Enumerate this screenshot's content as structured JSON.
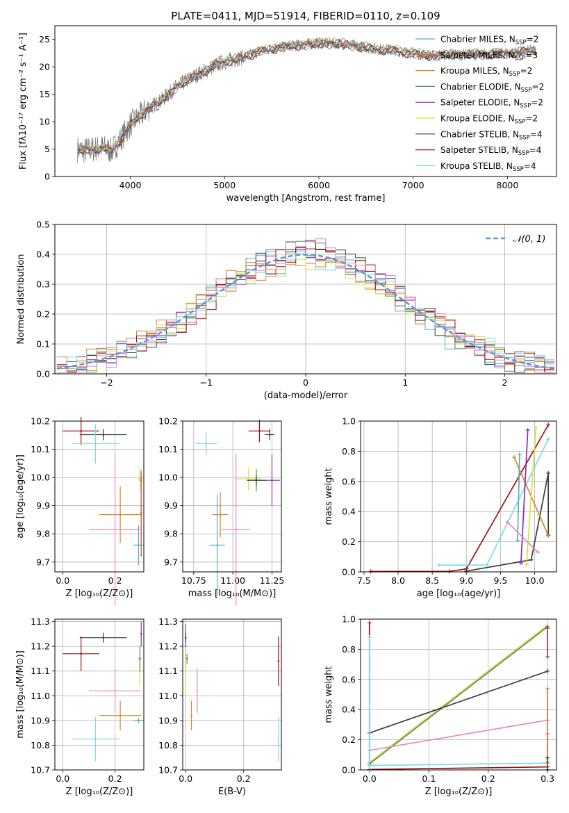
{
  "title": "PLATE=0411, MJD=51914, FIBERID=0110, z=0.109",
  "colors": {
    "chab_miles": "#5aa8c8",
    "salp_miles": "#ef6a3b",
    "krou_miles": "#d08a2a",
    "chab_elodie": "#5a8c5a",
    "salp_elodie": "#8a2ab8",
    "krou_elodie": "#d8e040",
    "chab_stelib": "#3c3c3c",
    "salp_stelib": "#a01010",
    "krou_stelib": "#7adbe8",
    "data": "#707070",
    "gauss": "#5a96d8",
    "grid": "#b0b0b0"
  },
  "chart_data": [
    {
      "type": "line",
      "id": "spectrum",
      "xlabel": "wavelength [Angstrom, rest frame]",
      "ylabel": "Flux [fλ10⁻¹⁷ erg cm⁻² s⁻¹ A⁻¹]",
      "xlim": [
        3200,
        8520
      ],
      "ylim": [
        0,
        27.5
      ],
      "xticks": [
        "4000",
        "5000",
        "6000",
        "7000",
        "8000"
      ],
      "yticks": [
        "0",
        "5",
        "10",
        "15",
        "20",
        "25"
      ],
      "legend": "right",
      "series": [
        {
          "name": "Chabrier MILES, N_SSP=2",
          "key": "chab_miles"
        },
        {
          "name": "Salpeter MILES, N_SSP=3",
          "key": "salp_miles"
        },
        {
          "name": "Kroupa MILES, N_SSP=2",
          "key": "krou_miles"
        },
        {
          "name": "Chabrier ELODIE, N_SSP=2",
          "key": "chab_elodie"
        },
        {
          "name": "Salpeter ELODIE, N_SSP=2",
          "key": "salp_elodie"
        },
        {
          "name": "Kroupa ELODIE, N_SSP=2",
          "key": "krou_elodie"
        },
        {
          "name": "Chabrier STELIB, N_SSP=4",
          "key": "chab_stelib"
        },
        {
          "name": "Salpeter STELIB, N_SSP=4",
          "key": "salp_stelib"
        },
        {
          "name": "Kroupa STELIB, N_SSP=4",
          "key": "krou_stelib"
        }
      ],
      "continuum_x": [
        3440,
        3500,
        3600,
        3700,
        3800,
        3900,
        4000,
        4100,
        4200,
        4300,
        4400,
        4500,
        4600,
        4700,
        4800,
        4900,
        5000,
        5100,
        5200,
        5300,
        5400,
        5500,
        5600,
        5800,
        6000,
        6200,
        6400,
        6600,
        6800,
        7000,
        7200,
        7400,
        7600,
        7800,
        8000,
        8300
      ],
      "continuum_y": [
        5,
        4.7,
        5,
        5.3,
        4.7,
        6.8,
        9.5,
        11,
        12.5,
        13.5,
        15,
        16.5,
        17.5,
        18.5,
        19.3,
        20.3,
        21,
        21.3,
        21.8,
        22.4,
        23,
        23.3,
        23.6,
        24,
        24.3,
        24.3,
        23.8,
        23.3,
        23,
        22.5,
        22,
        22.3,
        22.3,
        22.3,
        22.5,
        23
      ]
    },
    {
      "type": "bar",
      "id": "residuals",
      "xlabel": "(data-model)/error",
      "ylabel": "Normed distribution",
      "xlim": [
        -2.52,
        2.52
      ],
      "ylim": [
        0,
        0.5
      ],
      "xticks": [
        "−2",
        "−1",
        "0",
        "1",
        "2"
      ],
      "yticks": [
        "0.0",
        "0.1",
        "0.2",
        "0.3",
        "0.4",
        "0.5"
      ],
      "legend": "top-right",
      "gauss_label": "𝒩(0, 1)"
    },
    {
      "type": "scatter",
      "id": "age_vs_Z",
      "xlabel": "Z [log₁₀(Z/Z⊙)]",
      "ylabel": "age  [log₁₀(age/yr)]",
      "xlim": [
        -0.03,
        0.31
      ],
      "ylim": [
        9.665,
        10.2
      ],
      "xticks": [
        "0.0",
        "0.2"
      ],
      "yticks": [
        "9.7",
        "9.8",
        "9.9",
        "10.0",
        "10.1",
        "10.2"
      ],
      "points": [
        {
          "key": "salp_stelib",
          "x": 0.07,
          "xerr": 0.07,
          "y": 10.165,
          "yerr": 0.05
        },
        {
          "key": "chab_stelib",
          "x": 0.155,
          "xerr": 0.09,
          "y": 10.152,
          "yerr": 0.02
        },
        {
          "key": "krou_stelib",
          "x": 0.125,
          "xerr": 0.09,
          "y": 10.12,
          "yerr": 0.07
        },
        {
          "key": "krou_elodie",
          "x": 0.295,
          "xerr": 0.01,
          "y": 9.995,
          "yerr": 0.04
        },
        {
          "key": "chab_elodie",
          "x": 0.3,
          "xerr": 0.003,
          "y": 9.99,
          "yerr": 0.02
        },
        {
          "key": "chab_stelib",
          "x": 0.3,
          "xerr": 0.003,
          "y": 9.87,
          "yerr": 0.15
        },
        {
          "key": "salp_elodie",
          "x": 0.3,
          "xerr": 0.003,
          "y": 9.87,
          "yerr": 0.1
        },
        {
          "key": "krou_miles",
          "x": 0.22,
          "xerr": 0.08,
          "y": 9.868,
          "yerr": 0.1
        },
        {
          "key": "salp_miles",
          "x": 0.3,
          "xerr": 0.003,
          "y": 9.875,
          "yerr": 0.15
        },
        {
          "key": "pink",
          "x": 0.2,
          "xerr": 0.1,
          "y": 9.815,
          "yerr": 0.27
        },
        {
          "key": "chab_miles",
          "x": 0.29,
          "xerr": 0.02,
          "y": 9.76,
          "yerr": 0.07
        }
      ]
    },
    {
      "type": "scatter",
      "id": "age_vs_mass",
      "xlabel": "mass [log₁₀(M/M⊙)]",
      "ylabel": "",
      "xlim": [
        10.68,
        11.31
      ],
      "ylim": [
        9.665,
        10.2
      ],
      "xticks": [
        "10.75",
        "11.00",
        "11.25"
      ],
      "yticks": [
        "9.7",
        "9.8",
        "9.9",
        "10.0",
        "10.1",
        "10.2"
      ],
      "points": [
        {
          "key": "salp_stelib",
          "x": 11.17,
          "xerr": 0.07,
          "y": 10.165,
          "yerr": 0.04
        },
        {
          "key": "chab_stelib",
          "x": 11.235,
          "xerr": 0.03,
          "y": 10.152,
          "yerr": 0.02
        },
        {
          "key": "krou_stelib",
          "x": 10.83,
          "xerr": 0.07,
          "y": 10.12,
          "yerr": 0.04
        },
        {
          "key": "salp_elodie",
          "x": 11.25,
          "xerr": 0.05,
          "y": 9.99,
          "yerr": 0.09
        },
        {
          "key": "krou_elodie",
          "x": 11.1,
          "xerr": 0.08,
          "y": 9.995,
          "yerr": 0.04
        },
        {
          "key": "chab_elodie",
          "x": 11.15,
          "xerr": 0.06,
          "y": 9.99,
          "yerr": 0.04
        },
        {
          "key": "chab_stelib",
          "x": 11.15,
          "xerr": 0.06,
          "y": 9.99,
          "yerr": 0.02
        },
        {
          "key": "krou_miles",
          "x": 10.92,
          "xerr": 0.05,
          "y": 9.868,
          "yerr": 0.08
        },
        {
          "key": "chab_miles",
          "x": 10.9,
          "xerr": 0.05,
          "y": 9.76,
          "yerr": 0.18
        },
        {
          "key": "pink",
          "x": 11.02,
          "xerr": 0.09,
          "y": 9.815,
          "yerr": 0.27
        }
      ]
    },
    {
      "type": "line",
      "id": "weight_vs_age",
      "xlabel": "age  [log₁₀(age/yr)]",
      "ylabel": "mass weight",
      "xlim": [
        7.45,
        10.32
      ],
      "ylim": [
        0,
        1
      ],
      "xticks": [
        "7.5",
        "8.0",
        "8.5",
        "9.0",
        "9.5",
        "10.0"
      ],
      "yticks": [
        "0.0",
        "0.2",
        "0.4",
        "0.6",
        "0.8",
        "1.0"
      ],
      "series": [
        {
          "key": "salp_stelib",
          "x": [
            7.6,
            8.75,
            9.0,
            10.2
          ],
          "y": [
            0.003,
            0.003,
            0.02,
            0.975
          ]
        },
        {
          "key": "krou_stelib",
          "x": [
            8.6,
            9.3,
            10.2
          ],
          "y": [
            0.045,
            0.045,
            0.88
          ]
        },
        {
          "key": "chab_stelib",
          "x": [
            9.0,
            9.95,
            10.2,
            10.2
          ],
          "y": [
            0.005,
            0.08,
            0.655,
            0.245
          ]
        },
        {
          "key": "krou_miles",
          "x": [
            9.7,
            10.2
          ],
          "y": [
            0.76,
            0.24
          ]
        },
        {
          "key": "chab_miles",
          "x": [
            9.78,
            9.75
          ],
          "y": [
            0.78,
            0.21
          ]
        },
        {
          "key": "salp_elodie",
          "x": [
            9.8,
            9.9
          ],
          "y": [
            0.06,
            0.94
          ]
        },
        {
          "key": "krou_elodie",
          "x": [
            9.88,
            10.02
          ],
          "y": [
            0.05,
            0.96
          ]
        },
        {
          "key": "pink",
          "x": [
            9.6,
            10.05
          ],
          "y": [
            0.33,
            0.13
          ]
        }
      ]
    },
    {
      "type": "scatter",
      "id": "mass_vs_Z",
      "xlabel": "Z [log₁₀(Z/Z⊙)]",
      "ylabel": "mass [log₁₀(M/M⊙)]",
      "xlim": [
        -0.03,
        0.31
      ],
      "ylim": [
        10.7,
        11.31
      ],
      "xticks": [
        "0.0",
        "0.2"
      ],
      "yticks": [
        "10.7",
        "10.8",
        "10.9",
        "11.0",
        "11.1",
        "11.2",
        "11.3"
      ],
      "points": [
        {
          "key": "chab_stelib",
          "x": 0.155,
          "xerr": 0.09,
          "y": 11.235,
          "yerr": 0.02
        },
        {
          "key": "salp_elodie",
          "x": 0.3,
          "xerr": 0.003,
          "y": 11.25,
          "yerr": 0.05
        },
        {
          "key": "salp_stelib",
          "x": 0.07,
          "xerr": 0.07,
          "y": 11.17,
          "yerr": 0.07
        },
        {
          "key": "krou_elodie",
          "x": 0.295,
          "xerr": 0.01,
          "y": 11.1,
          "yerr": 0.06
        },
        {
          "key": "chab_elodie",
          "x": 0.295,
          "xerr": 0.005,
          "y": 11.15,
          "yerr": 0.05
        },
        {
          "key": "pink",
          "x": 0.2,
          "xerr": 0.1,
          "y": 11.02,
          "yerr": 0.09
        },
        {
          "key": "krou_miles",
          "x": 0.22,
          "xerr": 0.08,
          "y": 10.92,
          "yerr": 0.06
        },
        {
          "key": "chab_miles",
          "x": 0.29,
          "xerr": 0.02,
          "y": 10.9,
          "yerr": 0.01
        },
        {
          "key": "krou_stelib",
          "x": 0.125,
          "xerr": 0.09,
          "y": 10.825,
          "yerr": 0.09
        }
      ]
    },
    {
      "type": "scatter",
      "id": "mass_vs_ebv",
      "xlabel": "E(B-V)",
      "ylabel": "",
      "xlim": [
        -0.01,
        0.33
      ],
      "ylim": [
        10.7,
        11.31
      ],
      "xticks": [
        "0.0",
        "0.2"
      ],
      "yticks": [
        "10.7",
        "10.8",
        "10.9",
        "11.0",
        "11.1",
        "11.2",
        "11.3"
      ],
      "points": [
        {
          "key": "salp_elodie",
          "x": 0.0,
          "xerr": 0,
          "y": 11.2,
          "yerr": 0.09
        },
        {
          "key": "chab_stelib",
          "x": 0.0,
          "xerr": 0,
          "y": 11.235,
          "yerr": 0.02
        },
        {
          "key": "krou_elodie",
          "x": 0.0,
          "xerr": 0,
          "y": 11.1,
          "yerr": 0.1
        },
        {
          "key": "chab_elodie",
          "x": 0.005,
          "xerr": 0,
          "y": 11.15,
          "yerr": 0.02
        },
        {
          "key": "krou_miles",
          "x": 0.02,
          "xerr": 0,
          "y": 10.92,
          "yerr": 0.06
        },
        {
          "key": "pink",
          "x": 0.04,
          "xerr": 0,
          "y": 11.02,
          "yerr": 0.09
        },
        {
          "key": "salp_stelib",
          "x": 0.32,
          "xerr": 0,
          "y": 11.14,
          "yerr": 0.1
        },
        {
          "key": "krou_stelib",
          "x": 0.32,
          "xerr": 0,
          "y": 10.825,
          "yerr": 0.09
        }
      ]
    },
    {
      "type": "line",
      "id": "weight_vs_Z",
      "xlabel": "Z [log₁₀(Z/Z⊙)]",
      "ylabel": "mass weight",
      "xlim": [
        -0.015,
        0.315
      ],
      "ylim": [
        0,
        1
      ],
      "xticks": [
        "0.0",
        "0.1",
        "0.2",
        "0.3"
      ],
      "yticks": [
        "0.0",
        "0.2",
        "0.4",
        "0.6",
        "0.8",
        "1.0"
      ],
      "series": [
        {
          "key": "krou_elodie",
          "x": [
            0.0,
            0.3
          ],
          "y": [
            0.05,
            0.96
          ]
        },
        {
          "key": "chab_elodie",
          "x": [
            0.0,
            0.3
          ],
          "y": [
            0.04,
            0.95
          ]
        },
        {
          "key": "chab_stelib",
          "x": [
            0.0,
            0.3
          ],
          "y": [
            0.245,
            0.655
          ]
        },
        {
          "key": "pink",
          "x": [
            0.0,
            0.3
          ],
          "y": [
            0.13,
            0.33
          ]
        },
        {
          "key": "krou_stelib",
          "x": [
            0.0,
            0.3
          ],
          "y": [
            0.03,
            0.045
          ]
        },
        {
          "key": "salp_stelib",
          "x": [
            0.0,
            0.3
          ],
          "y": [
            0.003,
            0.02
          ]
        },
        {
          "key": "salp_stelib",
          "x": [
            0.0,
            0.0
          ],
          "y": [
            0.0,
            0.975
          ]
        },
        {
          "key": "krou_stelib",
          "x": [
            0.0,
            0.0
          ],
          "y": [
            0.0,
            0.88
          ]
        },
        {
          "key": "salp_elodie",
          "x": [
            0.3,
            0.3
          ],
          "y": [
            0.75,
            0.94
          ]
        },
        {
          "key": "krou_miles",
          "x": [
            0.3,
            0.3
          ],
          "y": [
            0.05,
            0.24
          ]
        },
        {
          "key": "salp_miles",
          "x": [
            0.3,
            0.3
          ],
          "y": [
            0.0,
            0.54
          ]
        },
        {
          "key": "chab_stelib",
          "x": [
            0.3,
            0.3
          ],
          "y": [
            0.0,
            0.08
          ]
        }
      ]
    }
  ]
}
